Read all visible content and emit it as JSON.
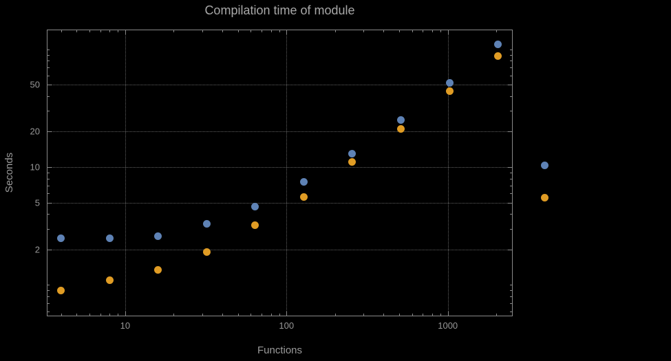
{
  "chart_data": {
    "type": "scatter",
    "title": "Compilation time of module",
    "xlabel": "Functions",
    "ylabel": "Seconds",
    "x_scale": "log",
    "y_scale": "log",
    "x_range": [
      3.3,
      2500
    ],
    "y_range": [
      0.55,
      145
    ],
    "grid": "dotted gridlines at major ticks only",
    "legend_position": "right-outside-markers-only",
    "x": [
      4,
      8,
      16,
      32,
      64,
      128,
      256,
      512,
      1024,
      2048
    ],
    "series": [
      {
        "name": "blue",
        "color": "#5E82B5",
        "values": [
          2.5,
          2.5,
          2.6,
          3.3,
          4.6,
          7.5,
          13,
          25,
          52,
          110
        ]
      },
      {
        "name": "orange",
        "color": "#E09C24",
        "values": [
          0.9,
          1.1,
          1.35,
          1.9,
          3.2,
          5.6,
          11,
          21,
          44,
          88
        ]
      }
    ],
    "x_ticks": [
      {
        "label": "10",
        "value": 10
      },
      {
        "label": "100",
        "value": 100
      },
      {
        "label": "1000",
        "value": 1000
      }
    ],
    "y_ticks": [
      {
        "label": "2",
        "value": 2
      },
      {
        "label": "5",
        "value": 5
      },
      {
        "label": "10",
        "value": 10
      },
      {
        "label": "20",
        "value": 20
      },
      {
        "label": "50",
        "value": 50
      }
    ]
  },
  "colors": {
    "background": "#000000",
    "frame": "#8a8a8a",
    "gridline": "#636363",
    "title_text": "#a8a8a8",
    "tick_text": "#989898",
    "axis_label_text": "#9a9a9a",
    "series_blue": "#5E82B5",
    "series_orange": "#E09C24"
  }
}
